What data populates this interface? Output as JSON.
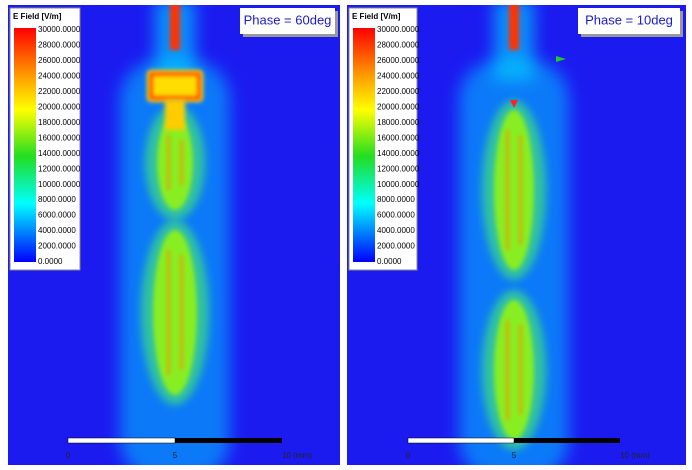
{
  "panels": [
    {
      "legend": {
        "title": "E Field [V/m]",
        "labels": [
          "30000.0000",
          "28000.0000",
          "26000.0000",
          "24000.0000",
          "22000.0000",
          "20000.0000",
          "18000.0000",
          "16000.0000",
          "14000.0000",
          "12000.0000",
          "10000.0000",
          "8000.0000",
          "6000.0000",
          "4000.0000",
          "2000.0000",
          "0.0000"
        ]
      },
      "phase_label": "Phase = 60deg",
      "scale_bar": {
        "labels": [
          "0",
          "5",
          "10 (mm)"
        ]
      }
    },
    {
      "legend": {
        "title": "E Field [V/m]",
        "labels": [
          "30000.0000",
          "28000.0000",
          "26000.0000",
          "24000.0000",
          "22000.0000",
          "20000.0000",
          "18000.0000",
          "16000.0000",
          "14000.0000",
          "12000.0000",
          "10000.0000",
          "8000.0000",
          "6000.0000",
          "4000.0000",
          "2000.0000",
          "0.0000"
        ]
      },
      "phase_label": "Phase = 10deg",
      "scale_bar": {
        "labels": [
          "0",
          "5",
          "10 (mm)"
        ]
      }
    }
  ]
}
